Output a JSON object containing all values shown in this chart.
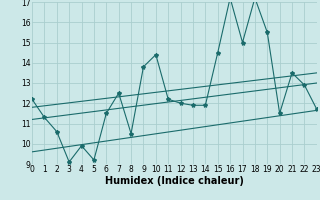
{
  "xlabel": "Humidex (Indice chaleur)",
  "x_min": 0,
  "x_max": 23,
  "y_min": 9,
  "y_max": 17,
  "background_color": "#cce8e8",
  "grid_color": "#aacece",
  "line_color": "#1a6b6b",
  "main_series_x": [
    0,
    1,
    2,
    3,
    4,
    5,
    6,
    7,
    8,
    9,
    10,
    11,
    12,
    13,
    14,
    15,
    16,
    17,
    18,
    19,
    20,
    21,
    22,
    23
  ],
  "main_series_y": [
    12.2,
    11.3,
    10.6,
    9.1,
    9.9,
    9.2,
    11.5,
    12.5,
    10.5,
    13.8,
    14.4,
    12.2,
    12.0,
    11.9,
    11.9,
    14.5,
    17.2,
    15.0,
    17.2,
    15.5,
    11.5,
    13.5,
    12.9,
    11.7
  ],
  "lower_line_x": [
    0,
    23
  ],
  "lower_line_y": [
    9.6,
    11.65
  ],
  "upper_line_x": [
    0,
    23
  ],
  "upper_line_y": [
    11.8,
    13.5
  ],
  "mid_line_x": [
    0,
    23
  ],
  "mid_line_y": [
    11.2,
    13.0
  ],
  "tick_fontsize": 5.5,
  "label_fontsize": 7.0
}
